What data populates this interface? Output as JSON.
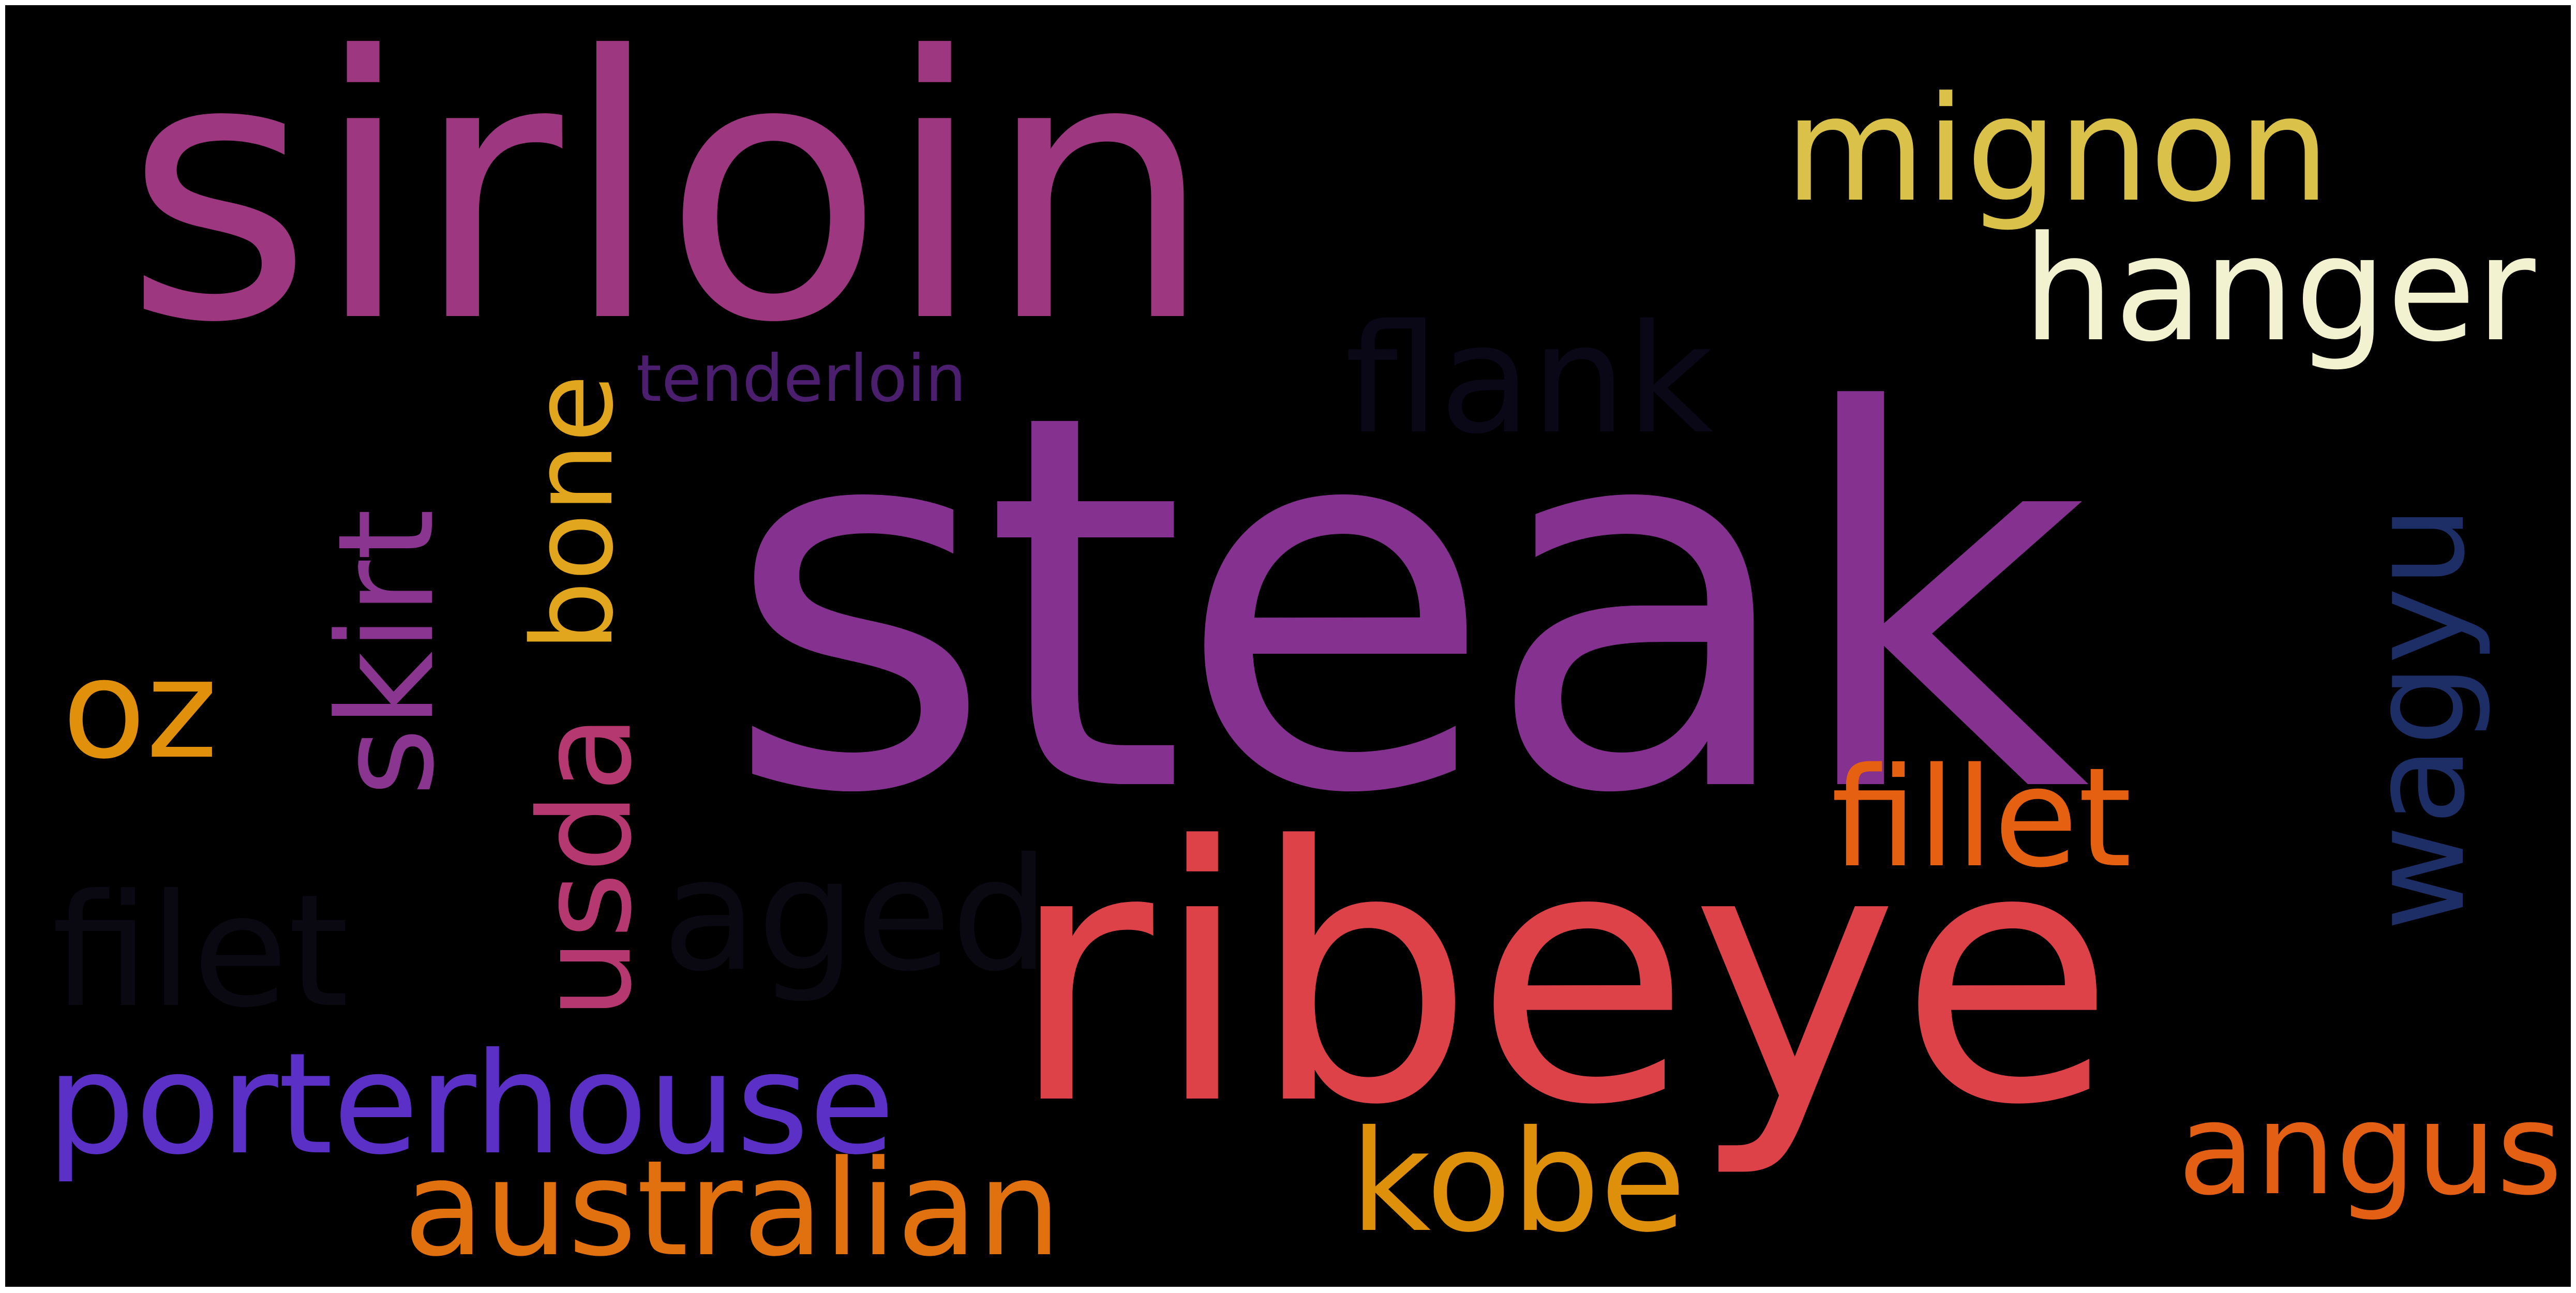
{
  "word_cloud": {
    "background": "#000000",
    "words": [
      {
        "text": "steak",
        "color": "#85318F"
      },
      {
        "text": "sirloin",
        "color": "#9C3780"
      },
      {
        "text": "ribeye",
        "color": "#DE4249"
      },
      {
        "text": "mignon",
        "color": "#D9C14A"
      },
      {
        "text": "hanger",
        "color": "#F2F1D0"
      },
      {
        "text": "flank",
        "color": "#0A0716"
      },
      {
        "text": "tenderloin",
        "color": "#4B1E6E"
      },
      {
        "text": "skirt",
        "color": "#8A3590"
      },
      {
        "text": "bone",
        "color": "#E1A61E"
      },
      {
        "text": "usda",
        "color": "#B53870"
      },
      {
        "text": "wagyu",
        "color": "#1D2E66"
      },
      {
        "text": "fillet",
        "color": "#E66012"
      },
      {
        "text": "oz",
        "color": "#E1900B"
      },
      {
        "text": "filet",
        "color": "#0A0912"
      },
      {
        "text": "aged",
        "color": "#0A0912"
      },
      {
        "text": "porterhouse",
        "color": "#5A30C6"
      },
      {
        "text": "kobe",
        "color": "#DE900B"
      },
      {
        "text": "australian",
        "color": "#E1700F"
      },
      {
        "text": "angus",
        "color": "#E35F14"
      }
    ]
  }
}
